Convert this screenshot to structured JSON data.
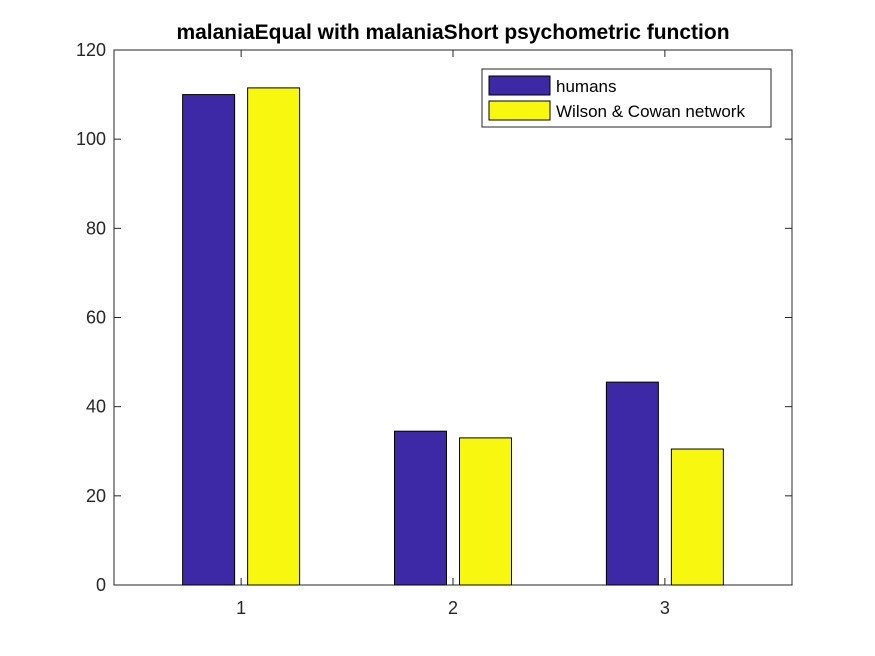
{
  "chart_data": {
    "type": "bar",
    "title": "malaniaEqual with malaniaShort psychometric function",
    "xlabel": "",
    "ylabel": "",
    "categories": [
      "1",
      "2",
      "3"
    ],
    "series": [
      {
        "name": "humans",
        "values": [
          110,
          34.5,
          45.5
        ],
        "color": "#3d29a5"
      },
      {
        "name": "Wilson & Cowan network",
        "values": [
          111.5,
          33,
          30.5
        ],
        "color": "#f7f70f"
      }
    ],
    "ylim": [
      0,
      120
    ],
    "yticks": [
      0,
      20,
      40,
      60,
      80,
      100,
      120
    ],
    "grid": false,
    "legend_position": "top-right"
  }
}
